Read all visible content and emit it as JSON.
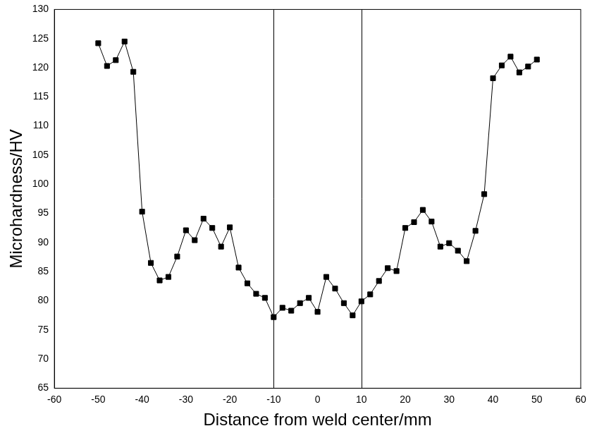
{
  "chart_data": {
    "type": "scatter",
    "x_label": "Distance from weld center/mm",
    "y_label": "Microhardness/HV",
    "x": [
      -50,
      -48,
      -46,
      -44,
      -42,
      -40,
      -38,
      -36,
      -34,
      -32,
      -30,
      -28,
      -26,
      -24,
      -22,
      -20,
      -18,
      -16,
      -14,
      -12,
      -10,
      -8,
      -6,
      -4,
      -2,
      0,
      2,
      4,
      6,
      8,
      10,
      12,
      14,
      16,
      18,
      20,
      22,
      24,
      26,
      28,
      30,
      32,
      34,
      36,
      38,
      40,
      42,
      44,
      46,
      48,
      50
    ],
    "values": [
      124.2,
      120.3,
      121.3,
      124.5,
      119.3,
      95.3,
      86.5,
      83.5,
      84.1,
      87.6,
      92.1,
      90.4,
      94.1,
      92.5,
      89.3,
      92.6,
      85.7,
      83.0,
      81.2,
      80.5,
      77.2,
      78.8,
      78.3,
      79.6,
      80.5,
      78.1,
      84.1,
      82.1,
      79.6,
      77.5,
      79.9,
      81.1,
      83.4,
      85.6,
      85.1,
      92.5,
      93.5,
      95.6,
      93.6,
      89.3,
      89.9,
      88.6,
      86.8,
      92.0,
      98.3,
      118.2,
      120.4,
      121.9,
      119.2,
      120.2,
      121.4
    ],
    "color": "#000000",
    "marker": "square",
    "line_style": "solid",
    "vlines": [
      -10,
      10
    ],
    "xlim": [
      -60,
      60
    ],
    "xticks": [
      -60,
      -50,
      -40,
      -30,
      -20,
      -10,
      0,
      10,
      20,
      30,
      40,
      50,
      60
    ],
    "ylim": [
      65,
      130
    ],
    "yticks": [
      65,
      70,
      75,
      80,
      85,
      90,
      95,
      100,
      105,
      110,
      115,
      120,
      125,
      130
    ],
    "grid": false
  }
}
